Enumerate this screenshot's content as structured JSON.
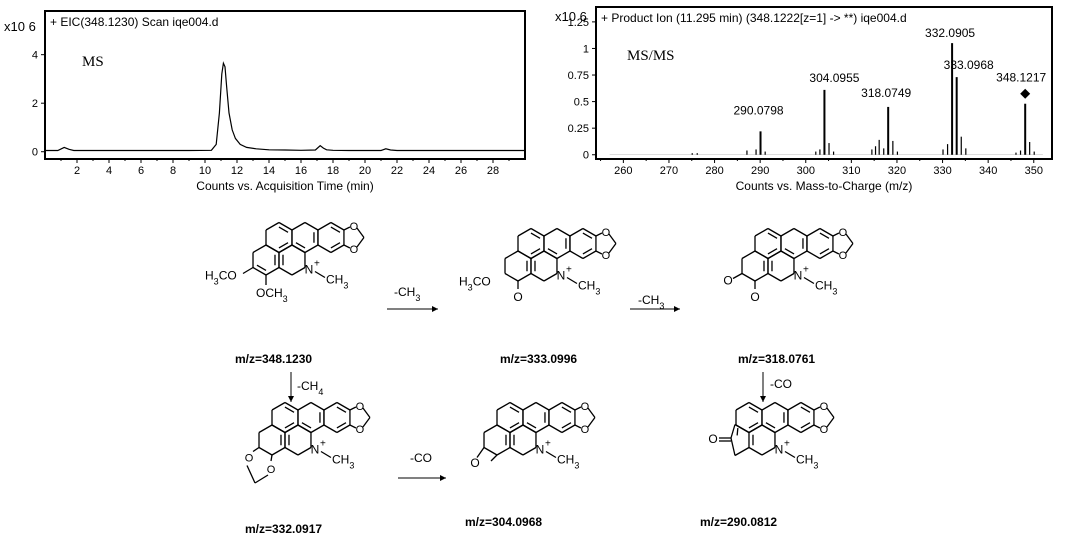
{
  "chart_data": [
    {
      "type": "line",
      "scale_label": "x10 6",
      "header": "+ EIC(348.1230) Scan iqe004.d",
      "inset_label": "MS",
      "xlabel": "Counts vs. Acquisition Time (min)",
      "ylabel": "",
      "xlim": [
        0,
        30
      ],
      "ylim": [
        -0.3,
        5.8
      ],
      "x_ticks": [
        2,
        4,
        6,
        8,
        10,
        12,
        14,
        16,
        18,
        20,
        22,
        24,
        26,
        28
      ],
      "y_ticks": [
        0,
        2,
        4
      ],
      "series": [
        {
          "x": [
            0,
            0.8,
            1.2,
            1.5,
            1.8,
            3,
            5,
            7,
            9,
            10.4,
            10.7,
            10.9,
            11.05,
            11.15,
            11.25,
            11.35,
            11.5,
            11.7,
            11.9,
            12.2,
            12.6,
            13.2,
            14,
            15,
            16,
            16.9,
            17.2,
            17.4,
            17.6,
            18,
            19,
            20,
            21,
            21.3,
            21.6,
            22,
            24,
            26,
            28,
            30
          ],
          "y": [
            0.05,
            0.05,
            0.18,
            0.1,
            0.05,
            0.05,
            0.05,
            0.05,
            0.05,
            0.06,
            0.3,
            1.6,
            3.2,
            3.65,
            3.5,
            2.7,
            1.6,
            0.9,
            0.55,
            0.3,
            0.18,
            0.12,
            0.08,
            0.07,
            0.06,
            0.07,
            0.25,
            0.15,
            0.08,
            0.06,
            0.05,
            0.05,
            0.05,
            0.12,
            0.07,
            0.05,
            0.05,
            0.05,
            0.05,
            0.05
          ]
        }
      ]
    },
    {
      "type": "bar",
      "scale_label": "x10 6",
      "header": "+ Product Ion (11.295 min) (348.1222[z=1] -> **) iqe004.d",
      "inset_label": "MS/MS",
      "xlabel": "Counts vs. Mass-to-Charge (m/z)",
      "ylabel": "",
      "xlim": [
        254,
        354
      ],
      "ylim": [
        -0.04,
        1.39
      ],
      "x_ticks": [
        260,
        270,
        280,
        290,
        300,
        310,
        320,
        330,
        340,
        350
      ],
      "y_ticks": [
        0,
        0.25,
        0.5,
        0.75,
        1,
        1.25
      ],
      "precursor_marker": "diamond",
      "peaks": [
        {
          "mz": 275.1,
          "y": 0.015
        },
        {
          "mz": 276.2,
          "y": 0.015
        },
        {
          "mz": 287.1,
          "y": 0.04
        },
        {
          "mz": 289.1,
          "y": 0.05
        },
        {
          "mz": 290.0798,
          "y": 0.22,
          "label": "290.0798"
        },
        {
          "mz": 291.1,
          "y": 0.03
        },
        {
          "mz": 302.2,
          "y": 0.03
        },
        {
          "mz": 303.1,
          "y": 0.05
        },
        {
          "mz": 304.0955,
          "y": 0.61,
          "label": "304.0955"
        },
        {
          "mz": 305.1,
          "y": 0.11
        },
        {
          "mz": 306.1,
          "y": 0.03
        },
        {
          "mz": 314.5,
          "y": 0.05
        },
        {
          "mz": 315.3,
          "y": 0.08
        },
        {
          "mz": 316.1,
          "y": 0.14
        },
        {
          "mz": 317.1,
          "y": 0.06
        },
        {
          "mz": 318.0749,
          "y": 0.45,
          "label": "318.0749"
        },
        {
          "mz": 319.1,
          "y": 0.13
        },
        {
          "mz": 320.1,
          "y": 0.03
        },
        {
          "mz": 330.1,
          "y": 0.05
        },
        {
          "mz": 331.1,
          "y": 0.1
        },
        {
          "mz": 332.0905,
          "y": 1.05,
          "label": "332.0905"
        },
        {
          "mz": 333.0968,
          "y": 0.73,
          "label": "333.0968"
        },
        {
          "mz": 334.1,
          "y": 0.17
        },
        {
          "mz": 335.1,
          "y": 0.06
        },
        {
          "mz": 346.1,
          "y": 0.02
        },
        {
          "mz": 347.1,
          "y": 0.04
        },
        {
          "mz": 348.1217,
          "y": 0.48,
          "label": "348.1217"
        },
        {
          "mz": 349.1,
          "y": 0.12
        },
        {
          "mz": 350.1,
          "y": 0.03
        }
      ]
    }
  ],
  "scheme": {
    "compounds": [
      {
        "mz": "m/z=348.1230"
      },
      {
        "mz": "m/z=333.0996"
      },
      {
        "mz": "m/z=318.0761"
      },
      {
        "mz": "m/z=332.0917"
      },
      {
        "mz": "m/z=304.0968"
      },
      {
        "mz": "m/z=290.0812"
      }
    ],
    "transitions": [
      {
        "label": "-CH",
        "sub": "3"
      },
      {
        "label": "-CH",
        "sub": "3"
      },
      {
        "label": "-CH",
        "sub": "4"
      },
      {
        "label": "-CO",
        "sub": ""
      },
      {
        "label": "-CO",
        "sub": ""
      }
    ],
    "atoms": {
      "ch3": "CH",
      "three": "3",
      "n": "N",
      "plus": "+",
      "o": "O",
      "h3c": "H",
      "h3c_3": "3",
      "h3c_c": "C",
      "och3": "OCH",
      "och3_3": "3"
    }
  }
}
